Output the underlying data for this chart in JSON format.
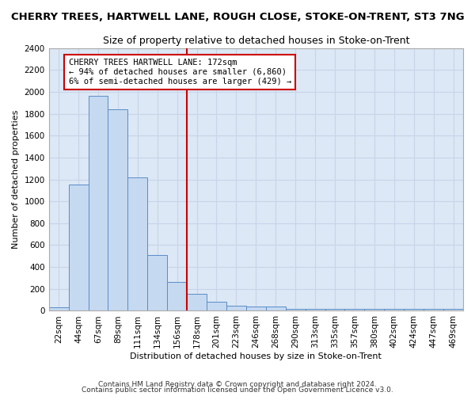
{
  "title": "CHERRY TREES, HARTWELL LANE, ROUGH CLOSE, STOKE-ON-TRENT, ST3 7NG",
  "subtitle": "Size of property relative to detached houses in Stoke-on-Trent",
  "xlabel": "Distribution of detached houses by size in Stoke-on-Trent",
  "ylabel": "Number of detached properties",
  "footer1": "Contains HM Land Registry data © Crown copyright and database right 2024.",
  "footer2": "Contains public sector information licensed under the Open Government Licence v3.0.",
  "annotation_line1": "CHERRY TREES HARTWELL LANE: 172sqm",
  "annotation_line2": "← 94% of detached houses are smaller (6,860)",
  "annotation_line3": "6% of semi-detached houses are larger (429) →",
  "categories": [
    "22sqm",
    "44sqm",
    "67sqm",
    "89sqm",
    "111sqm",
    "134sqm",
    "156sqm",
    "178sqm",
    "201sqm",
    "223sqm",
    "246sqm",
    "268sqm",
    "290sqm",
    "313sqm",
    "335sqm",
    "357sqm",
    "380sqm",
    "402sqm",
    "424sqm",
    "447sqm",
    "469sqm"
  ],
  "values": [
    30,
    1150,
    1960,
    1840,
    1220,
    510,
    265,
    155,
    85,
    50,
    40,
    40,
    20,
    20,
    20,
    20,
    20,
    20,
    20,
    20,
    20
  ],
  "bar_color": "#c5d9f0",
  "bar_edge_color": "#5b8cc8",
  "vline_color": "#cc0000",
  "vline_x": 6.5,
  "annotation_box_edge": "#cc0000",
  "ylim": [
    0,
    2400
  ],
  "yticks": [
    0,
    200,
    400,
    600,
    800,
    1000,
    1200,
    1400,
    1600,
    1800,
    2000,
    2200,
    2400
  ],
  "grid_color": "#c8d4e8",
  "bg_color": "#dce8f5",
  "title_fontsize": 9.5,
  "subtitle_fontsize": 9,
  "axis_label_fontsize": 8,
  "tick_fontsize": 7.5,
  "annotation_fontsize": 7.5
}
